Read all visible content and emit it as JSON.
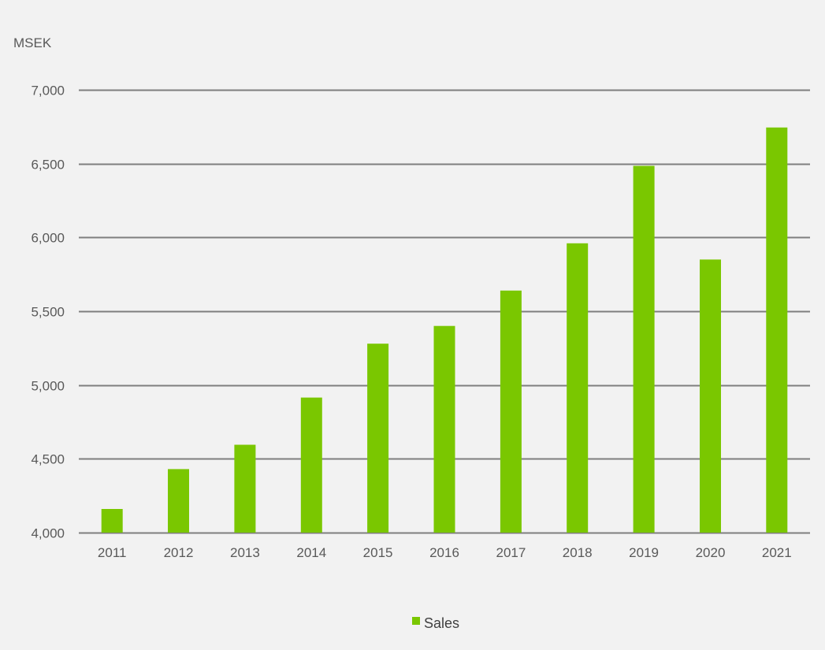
{
  "chart_data": {
    "type": "bar",
    "unit_label": "MSEK",
    "categories": [
      "2011",
      "2012",
      "2013",
      "2014",
      "2015",
      "2016",
      "2017",
      "2018",
      "2019",
      "2020",
      "2021"
    ],
    "series": [
      {
        "name": "Sales",
        "color": "#7ac700",
        "values": [
          4160,
          4430,
          4595,
          4915,
          5280,
          5400,
          5640,
          5960,
          6485,
          5850,
          6745
        ]
      }
    ],
    "ylim": [
      4000,
      7000
    ],
    "yticks": [
      4000,
      4500,
      5000,
      5500,
      6000,
      6500,
      7000
    ],
    "ytick_labels": [
      "4,000",
      "4,500",
      "5,000",
      "5,500",
      "6,000",
      "6,500",
      "7,000"
    ],
    "grid": true,
    "gridline_color": "#7f7f7f",
    "legend_position": "bottom"
  }
}
